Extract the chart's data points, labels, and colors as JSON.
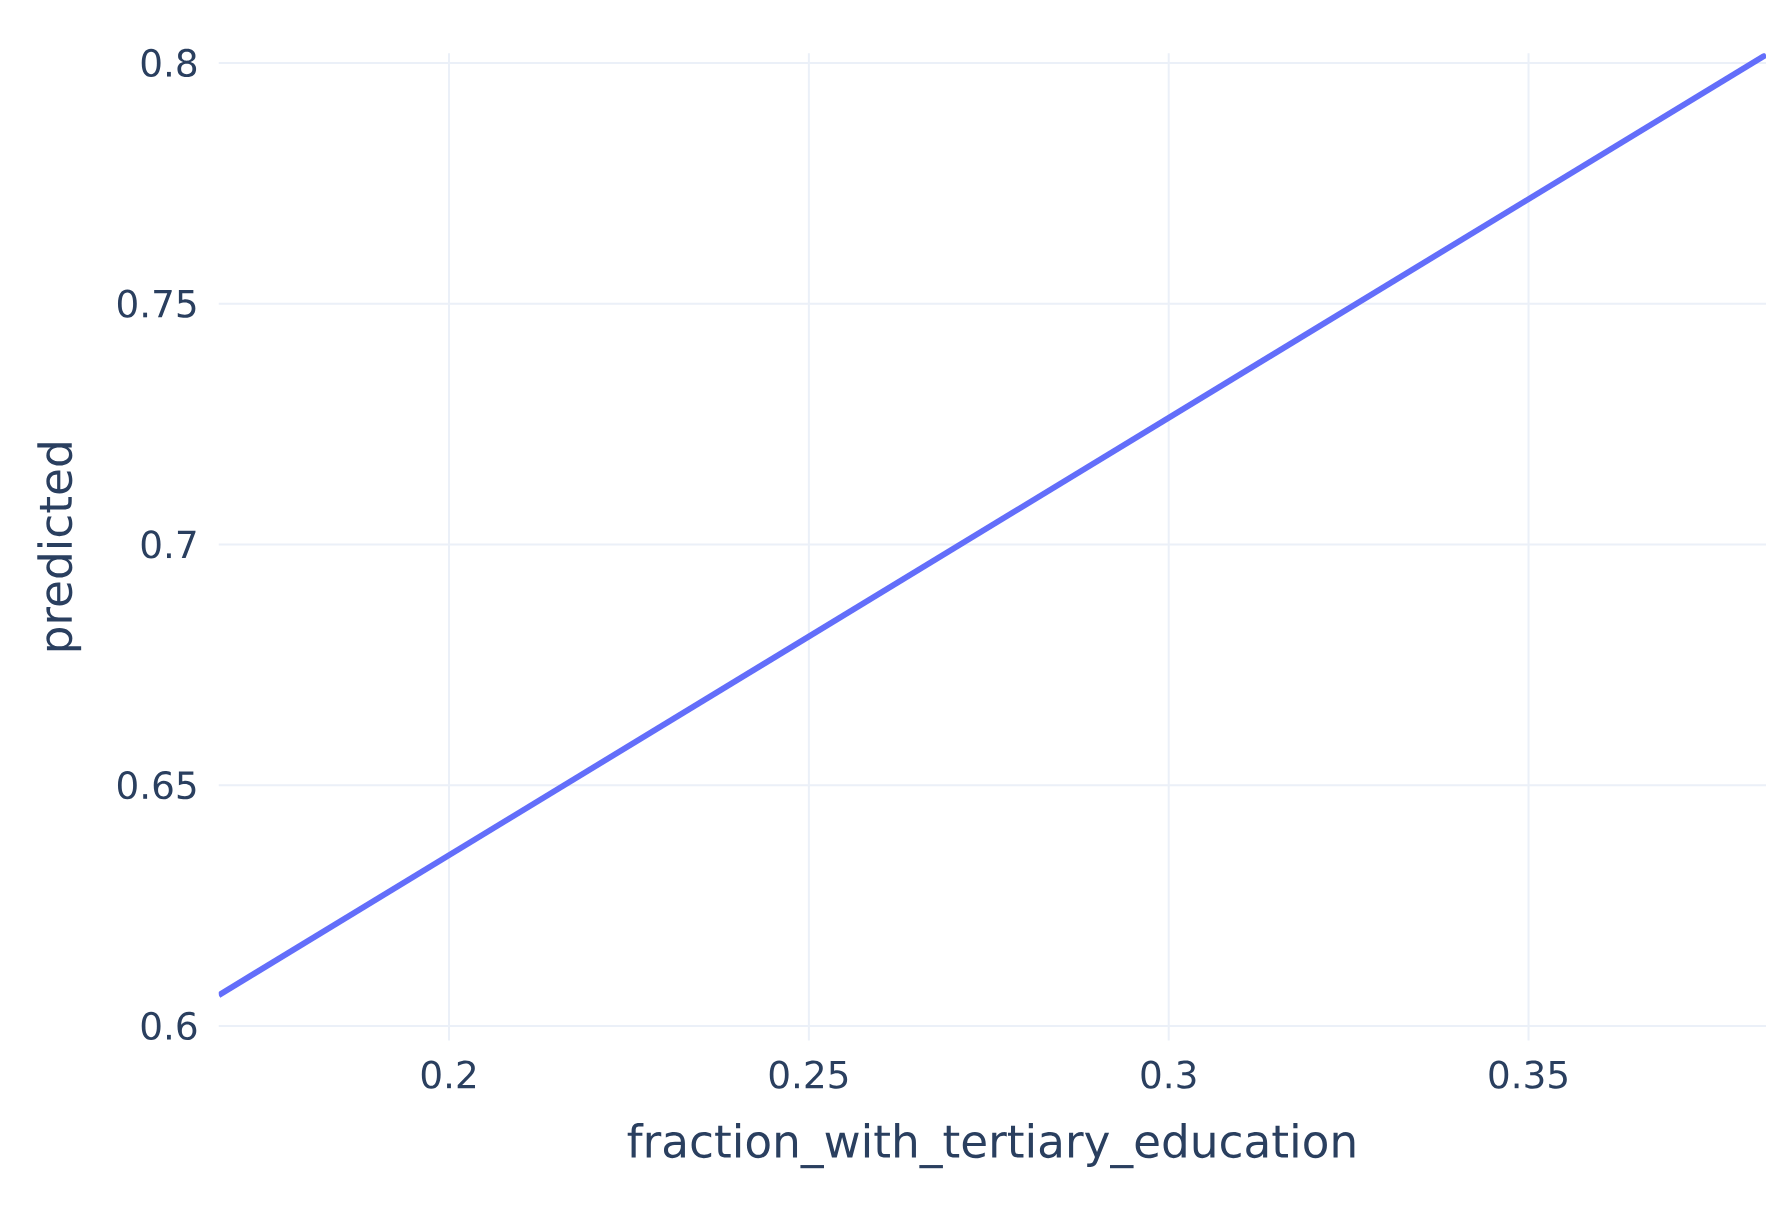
{
  "chart_data": {
    "type": "line",
    "xlabel": "fraction_with_tertiary_education",
    "ylabel": "predicted",
    "x": [
      0.168,
      0.383
    ],
    "series": [
      {
        "color": "#636efa",
        "values": [
          0.6064,
          0.8017
        ]
      }
    ],
    "xlim": [
      0.168,
      0.383
    ],
    "ylim": [
      0.597,
      0.802
    ],
    "xticks": [
      0.2,
      0.25,
      0.3,
      0.35
    ],
    "yticks": [
      0.6,
      0.65,
      0.7,
      0.75,
      0.8
    ],
    "grid": true,
    "marker": "none",
    "line_style": "solid"
  }
}
